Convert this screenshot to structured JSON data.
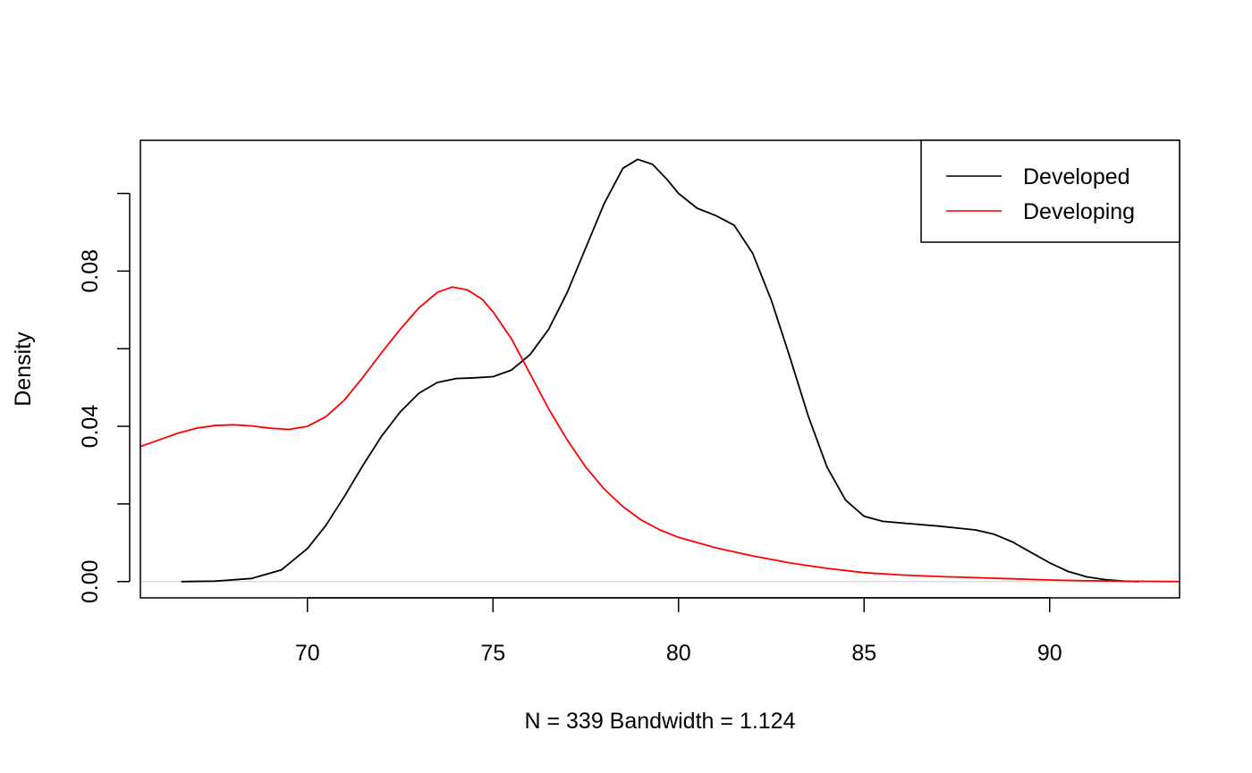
{
  "chart_data": {
    "type": "line",
    "title": "",
    "xlabel": "N = 339   Bandwidth = 1.124",
    "ylabel": "Density",
    "xlim": [
      65.5,
      93.5
    ],
    "ylim": [
      -0.0042,
      0.1137
    ],
    "x_ticks": [
      70,
      75,
      80,
      85,
      90
    ],
    "x_tick_labels": [
      "70",
      "75",
      "80",
      "85",
      "90"
    ],
    "y_ticks": [
      0.0,
      0.02,
      0.04,
      0.06,
      0.08,
      0.1
    ],
    "y_tick_labels": [
      "0.00",
      "",
      "0.04",
      "",
      "0.08",
      ""
    ],
    "grid": false,
    "zero_line": true,
    "legend": {
      "position": "top-right"
    },
    "series": [
      {
        "name": "Developed",
        "color": "#000000",
        "points": [
          [
            66.6,
            0.0
          ],
          [
            67.5,
            0.0001
          ],
          [
            68.5,
            0.0008
          ],
          [
            69.3,
            0.003
          ],
          [
            70.0,
            0.0085
          ],
          [
            70.5,
            0.0145
          ],
          [
            71.0,
            0.022
          ],
          [
            71.5,
            0.03
          ],
          [
            72.0,
            0.0375
          ],
          [
            72.5,
            0.0437
          ],
          [
            73.0,
            0.0485
          ],
          [
            73.5,
            0.0513
          ],
          [
            74.0,
            0.0523
          ],
          [
            74.5,
            0.0525
          ],
          [
            75.0,
            0.0528
          ],
          [
            75.5,
            0.0545
          ],
          [
            76.0,
            0.0585
          ],
          [
            76.5,
            0.065
          ],
          [
            77.0,
            0.0745
          ],
          [
            77.5,
            0.086
          ],
          [
            78.0,
            0.0975
          ],
          [
            78.5,
            0.1065
          ],
          [
            78.9,
            0.1088
          ],
          [
            79.3,
            0.1075
          ],
          [
            79.7,
            0.1035
          ],
          [
            80.0,
            0.1
          ],
          [
            80.5,
            0.0962
          ],
          [
            81.0,
            0.0943
          ],
          [
            81.5,
            0.0918
          ],
          [
            82.0,
            0.0845
          ],
          [
            82.5,
            0.0725
          ],
          [
            83.0,
            0.0578
          ],
          [
            83.5,
            0.0425
          ],
          [
            84.0,
            0.0295
          ],
          [
            84.5,
            0.021
          ],
          [
            85.0,
            0.0168
          ],
          [
            85.5,
            0.0155
          ],
          [
            86.0,
            0.0151
          ],
          [
            87.0,
            0.0143
          ],
          [
            88.0,
            0.0133
          ],
          [
            88.5,
            0.0122
          ],
          [
            89.0,
            0.0102
          ],
          [
            89.5,
            0.0075
          ],
          [
            90.0,
            0.0048
          ],
          [
            90.5,
            0.0026
          ],
          [
            91.0,
            0.0012
          ],
          [
            91.5,
            0.0005
          ],
          [
            92.0,
            0.0001
          ],
          [
            92.4,
            0.0
          ]
        ]
      },
      {
        "name": "Developing",
        "color": "#ff0000",
        "points": [
          [
            65.5,
            0.0348
          ],
          [
            66.0,
            0.0365
          ],
          [
            66.5,
            0.0382
          ],
          [
            67.0,
            0.0395
          ],
          [
            67.5,
            0.0402
          ],
          [
            68.0,
            0.0404
          ],
          [
            68.5,
            0.0401
          ],
          [
            69.0,
            0.0395
          ],
          [
            69.5,
            0.0392
          ],
          [
            70.0,
            0.04
          ],
          [
            70.5,
            0.0425
          ],
          [
            71.0,
            0.0468
          ],
          [
            71.5,
            0.0527
          ],
          [
            72.0,
            0.059
          ],
          [
            72.5,
            0.065
          ],
          [
            73.0,
            0.0705
          ],
          [
            73.5,
            0.0745
          ],
          [
            73.9,
            0.0759
          ],
          [
            74.3,
            0.0752
          ],
          [
            74.7,
            0.0728
          ],
          [
            75.0,
            0.0695
          ],
          [
            75.5,
            0.0625
          ],
          [
            76.0,
            0.0535
          ],
          [
            76.5,
            0.0445
          ],
          [
            77.0,
            0.0365
          ],
          [
            77.5,
            0.0295
          ],
          [
            78.0,
            0.0238
          ],
          [
            78.5,
            0.0193
          ],
          [
            79.0,
            0.0158
          ],
          [
            79.5,
            0.0133
          ],
          [
            80.0,
            0.0114
          ],
          [
            81.0,
            0.0087
          ],
          [
            82.0,
            0.0066
          ],
          [
            83.0,
            0.0048
          ],
          [
            84.0,
            0.0034
          ],
          [
            85.0,
            0.0023
          ],
          [
            86.0,
            0.0017
          ],
          [
            87.0,
            0.0013
          ],
          [
            88.0,
            0.001
          ],
          [
            89.0,
            0.0007
          ],
          [
            90.0,
            0.0004
          ],
          [
            91.0,
            0.0002
          ],
          [
            92.0,
            0.0001
          ],
          [
            93.5,
            0.0
          ]
        ]
      }
    ]
  }
}
